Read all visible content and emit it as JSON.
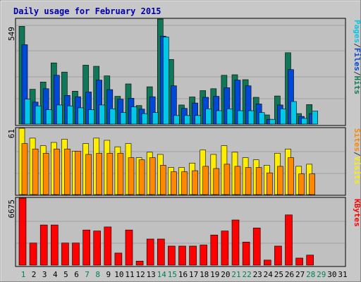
{
  "chart_data": {
    "title": "Daily usage for February 2015",
    "type": "bar",
    "days": [
      "1",
      "2",
      "3",
      "4",
      "5",
      "6",
      "7",
      "8",
      "9",
      "10",
      "11",
      "12",
      "13",
      "14",
      "15",
      "16",
      "17",
      "18",
      "19",
      "20",
      "21",
      "22",
      "23",
      "24",
      "25",
      "26",
      "27",
      "28",
      "29",
      "30",
      "31"
    ],
    "weekend_days": [
      "1",
      "7",
      "8",
      "14",
      "15",
      "21",
      "22",
      "28",
      "29"
    ],
    "panels": [
      {
        "id": "hits-files-pages",
        "max_label": "549",
        "ymax": 549,
        "legend": [
          "Pages",
          "/",
          "Files",
          "/",
          "Hits"
        ],
        "legend_colors": [
          "#00c8e8",
          "#333333",
          "#0048d8",
          "#333333",
          "#107858"
        ],
        "series": [
          {
            "name": "Hits",
            "color": "#107858",
            "values": [
              511,
              182,
              220,
              320,
              272,
              172,
              308,
              302,
              252,
              145,
              210,
              97,
              195,
              549,
              338,
              100,
              142,
              175,
              185,
              255,
              258,
              232,
              140,
              48,
              147,
              373,
              55,
              102,
              0,
              0,
              0
            ]
          },
          {
            "name": "Files",
            "color": "#0048d8",
            "values": [
              415,
              115,
              185,
              255,
              150,
              143,
              168,
              230,
              180,
              130,
              135,
              78,
              143,
              460,
              200,
              82,
              110,
              140,
              145,
              190,
              230,
              200,
              105,
              25,
              100,
              285,
              40,
              55,
              0,
              0,
              0
            ]
          },
          {
            "name": "Pages",
            "color": "#00c8e8",
            "values": [
              130,
              95,
              75,
              100,
              95,
              85,
              75,
              100,
              80,
              60,
              90,
              55,
              60,
              455,
              45,
              45,
              45,
              80,
              70,
              80,
              70,
              70,
              60,
              25,
              80,
              118,
              30,
              68,
              0,
              0,
              0
            ]
          }
        ]
      },
      {
        "id": "visits-sites",
        "max_label": "61",
        "ymax": 61,
        "legend": [
          "Sites",
          "/",
          "Visits"
        ],
        "legend_colors": [
          "#ff8800",
          "#333333",
          "#ffee00"
        ],
        "series": [
          {
            "name": "Visits",
            "color": "#ffee00",
            "values": [
              61,
              52,
              45,
              48,
              51,
              40,
              47,
              52,
              50,
              44,
              47,
              34,
              39,
              37,
              25,
              25,
              29,
              41,
              37,
              45,
              39,
              34,
              32,
              27,
              38,
              42,
              26,
              28,
              0,
              0,
              0
            ]
          },
          {
            "name": "Sites",
            "color": "#ff8800",
            "values": [
              47,
              42,
              38,
              42,
              42,
              40,
              37,
              38,
              38,
              38,
              34,
              32,
              34,
              27,
              21,
              21,
              22,
              26,
              24,
              28,
              26,
              25,
              25,
              20,
              26,
              34,
              19,
              19,
              0,
              0,
              0
            ]
          }
        ]
      },
      {
        "id": "kbytes",
        "max_label": "6675",
        "ymax": 6675,
        "legend": [
          "KBytes"
        ],
        "legend_colors": [
          "#ff0000"
        ],
        "series": [
          {
            "name": "KBytes",
            "color": "#ff0000",
            "values": [
              6675,
              2200,
              4000,
              4000,
              2200,
              2200,
              3500,
              3400,
              3800,
              1200,
              3500,
              400,
              2600,
              2600,
              1900,
              1900,
              1900,
              2000,
              3000,
              3400,
              4500,
              2300,
              3700,
              500,
              1900,
              5000,
              700,
              1000,
              0,
              0,
              0
            ]
          }
        ]
      }
    ]
  }
}
